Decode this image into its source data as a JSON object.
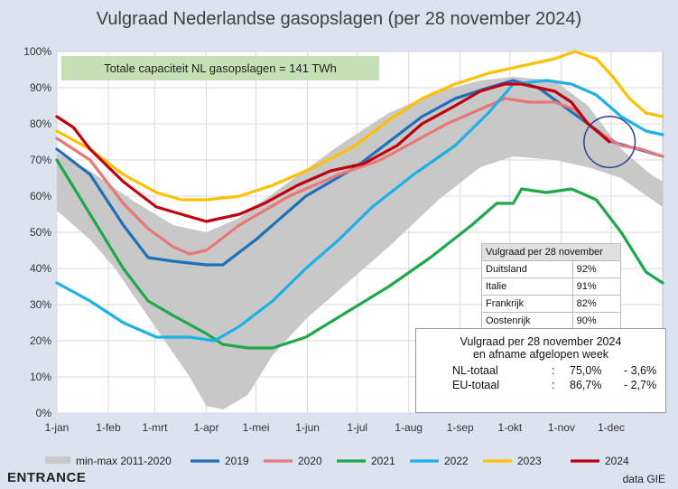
{
  "title": "Vulgraad Nederlandse gasopslagen (per 28 november 2024)",
  "capacity_note": "Totale capaciteit NL gasopslagen = 141 TWh",
  "country_table": {
    "header": "Vulgraad per 28 november",
    "rows": [
      {
        "country": "Duitsland",
        "value": "92%"
      },
      {
        "country": "Italie",
        "value": "91%"
      },
      {
        "country": "Frankrijk",
        "value": "82%"
      },
      {
        "country": "Oostenrijk",
        "value": "90%"
      }
    ]
  },
  "summary": {
    "line1": "Vulgraad per 28 november 2024",
    "line2": "en afname afgelopen week",
    "rows": [
      {
        "label": "NL-totaal",
        "sep": ":",
        "value": "75,0%",
        "change": "- 3,6%"
      },
      {
        "label": "EU-totaal",
        "sep": ":",
        "value": "86,7%",
        "change": "- 2,7%"
      }
    ]
  },
  "logo": "ENTRANCE",
  "source": "data GIE",
  "chart_data": {
    "type": "line",
    "y_ticks": [
      "0%",
      "10%",
      "20%",
      "30%",
      "40%",
      "50%",
      "60%",
      "70%",
      "80%",
      "90%",
      "100%"
    ],
    "ylim": [
      0,
      100
    ],
    "x_ticks": [
      "1-jan",
      "1-feb",
      "1-mrt",
      "1-apr",
      "1-mei",
      "1-jun",
      "1-jul",
      "1-aug",
      "1-sep",
      "1-okt",
      "1-nov",
      "1-dec"
    ],
    "x_tick_days": [
      0,
      31,
      59,
      90,
      120,
      151,
      181,
      212,
      243,
      273,
      304,
      334
    ],
    "xlim": [
      0,
      365
    ],
    "grid": true,
    "legend_position": "bottom",
    "band": {
      "name": "min-max 2011-2020",
      "color": "#c8c8c8",
      "upper": [
        [
          0,
          72
        ],
        [
          20,
          67
        ],
        [
          45,
          59
        ],
        [
          70,
          52
        ],
        [
          90,
          50
        ],
        [
          110,
          54
        ],
        [
          140,
          64
        ],
        [
          170,
          74
        ],
        [
          200,
          83
        ],
        [
          230,
          89
        ],
        [
          255,
          92
        ],
        [
          275,
          93
        ],
        [
          300,
          92
        ],
        [
          320,
          85
        ],
        [
          340,
          73
        ],
        [
          358,
          66
        ],
        [
          365,
          64
        ]
      ],
      "lower": [
        [
          0,
          56
        ],
        [
          20,
          48
        ],
        [
          35,
          40
        ],
        [
          50,
          30
        ],
        [
          65,
          20
        ],
        [
          80,
          10
        ],
        [
          90,
          2
        ],
        [
          100,
          1
        ],
        [
          115,
          5
        ],
        [
          130,
          16
        ],
        [
          150,
          26
        ],
        [
          175,
          36
        ],
        [
          200,
          46
        ],
        [
          230,
          59
        ],
        [
          255,
          68
        ],
        [
          275,
          71
        ],
        [
          300,
          70
        ],
        [
          320,
          68
        ],
        [
          340,
          65
        ],
        [
          365,
          57
        ]
      ]
    },
    "series": [
      {
        "name": "2019",
        "color": "#1f6fba",
        "points": [
          [
            0,
            73
          ],
          [
            20,
            66
          ],
          [
            40,
            52
          ],
          [
            55,
            43
          ],
          [
            70,
            42
          ],
          [
            90,
            41
          ],
          [
            100,
            41
          ],
          [
            120,
            48
          ],
          [
            150,
            60
          ],
          [
            180,
            68
          ],
          [
            200,
            75
          ],
          [
            220,
            82
          ],
          [
            240,
            87
          ],
          [
            260,
            90
          ],
          [
            275,
            92
          ],
          [
            290,
            90
          ],
          [
            305,
            85
          ],
          [
            320,
            80
          ],
          [
            335,
            75
          ],
          [
            350,
            73
          ],
          [
            365,
            71
          ]
        ]
      },
      {
        "name": "2020",
        "color": "#e87878",
        "points": [
          [
            0,
            76
          ],
          [
            20,
            70
          ],
          [
            40,
            58
          ],
          [
            55,
            51
          ],
          [
            70,
            46
          ],
          [
            80,
            44
          ],
          [
            90,
            45
          ],
          [
            110,
            52
          ],
          [
            140,
            60
          ],
          [
            170,
            66
          ],
          [
            195,
            70
          ],
          [
            215,
            75
          ],
          [
            235,
            80
          ],
          [
            255,
            84
          ],
          [
            270,
            87
          ],
          [
            285,
            86
          ],
          [
            300,
            86
          ],
          [
            312,
            84
          ],
          [
            325,
            78
          ],
          [
            340,
            74
          ],
          [
            352,
            73
          ],
          [
            365,
            71
          ]
        ]
      },
      {
        "name": "2021",
        "color": "#1fa84a",
        "points": [
          [
            0,
            70
          ],
          [
            20,
            55
          ],
          [
            40,
            40
          ],
          [
            55,
            31
          ],
          [
            70,
            27
          ],
          [
            90,
            22
          ],
          [
            100,
            19
          ],
          [
            115,
            18
          ],
          [
            130,
            18
          ],
          [
            150,
            21
          ],
          [
            175,
            28
          ],
          [
            200,
            35
          ],
          [
            225,
            43
          ],
          [
            250,
            52
          ],
          [
            265,
            58
          ],
          [
            275,
            58
          ],
          [
            280,
            62
          ],
          [
            295,
            61
          ],
          [
            310,
            62
          ],
          [
            325,
            59
          ],
          [
            340,
            50
          ],
          [
            355,
            39
          ],
          [
            365,
            36
          ]
        ]
      },
      {
        "name": "2022",
        "color": "#1fb0e6",
        "points": [
          [
            0,
            36
          ],
          [
            20,
            31
          ],
          [
            40,
            25
          ],
          [
            60,
            21
          ],
          [
            80,
            21
          ],
          [
            95,
            20
          ],
          [
            110,
            24
          ],
          [
            130,
            31
          ],
          [
            150,
            40
          ],
          [
            170,
            48
          ],
          [
            190,
            57
          ],
          [
            215,
            66
          ],
          [
            240,
            74
          ],
          [
            260,
            83
          ],
          [
            275,
            91
          ],
          [
            295,
            92
          ],
          [
            310,
            91
          ],
          [
            325,
            88
          ],
          [
            340,
            82
          ],
          [
            355,
            78
          ],
          [
            365,
            77
          ]
        ]
      },
      {
        "name": "2023",
        "color": "#ffc000",
        "points": [
          [
            0,
            78
          ],
          [
            20,
            73
          ],
          [
            40,
            66
          ],
          [
            60,
            61
          ],
          [
            75,
            59
          ],
          [
            90,
            59
          ],
          [
            110,
            60
          ],
          [
            130,
            63
          ],
          [
            155,
            68
          ],
          [
            180,
            74
          ],
          [
            200,
            81
          ],
          [
            220,
            87
          ],
          [
            240,
            91
          ],
          [
            260,
            94
          ],
          [
            280,
            96
          ],
          [
            300,
            98
          ],
          [
            312,
            100
          ],
          [
            325,
            98
          ],
          [
            335,
            93
          ],
          [
            345,
            87
          ],
          [
            355,
            83
          ],
          [
            365,
            82
          ]
        ]
      },
      {
        "name": "2024",
        "color": "#c0000c",
        "points": [
          [
            0,
            82
          ],
          [
            10,
            79
          ],
          [
            20,
            73
          ],
          [
            40,
            64
          ],
          [
            60,
            57
          ],
          [
            75,
            55
          ],
          [
            90,
            53
          ],
          [
            100,
            54
          ],
          [
            110,
            55
          ],
          [
            125,
            58
          ],
          [
            145,
            63
          ],
          [
            165,
            67
          ],
          [
            185,
            69
          ],
          [
            205,
            74
          ],
          [
            220,
            80
          ],
          [
            240,
            85
          ],
          [
            255,
            89
          ],
          [
            270,
            91
          ],
          [
            280,
            91
          ],
          [
            290,
            90
          ],
          [
            300,
            89
          ],
          [
            310,
            86
          ],
          [
            320,
            80
          ],
          [
            328,
            77
          ],
          [
            333,
            75
          ]
        ]
      }
    ],
    "highlight_circle": {
      "x": 333,
      "y": 75,
      "r_days": 11,
      "color": "#2e3f8f"
    }
  }
}
